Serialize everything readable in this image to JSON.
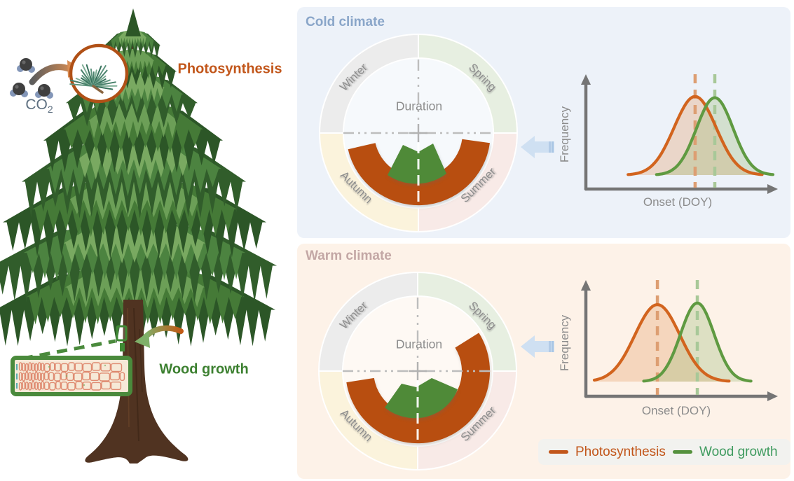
{
  "left": {
    "co2": {
      "base": "CO",
      "sub": "2"
    },
    "photosynthesis_label": "Photosynthesis",
    "wood_growth_label": "Wood growth",
    "icons": {
      "co2_molecules": "co2-ball-and-stick-molecules",
      "co2_arrow": "curved-right-arrow-gray-to-orange",
      "pine_shoot_circle": "circle-inset-pine-needles",
      "wood_growth_arrow": "curved-left-arrow-orange-to-green",
      "xylem_box": "wood-cell-cross-section",
      "tree": "pine-tree-illustration"
    }
  },
  "panels": [
    {
      "id": "cold",
      "title": "Cold climate",
      "duration_label": "Duration",
      "seasons": [
        "Winter",
        "Spring",
        "Summer",
        "Autumn"
      ],
      "photosynthesis_arc_deg": {
        "start": 98,
        "end": 257
      },
      "wood_arc_deg": {
        "start": 146,
        "end": 216
      },
      "wood_profile_points": [
        [
          -44,
          60
        ],
        [
          -22,
          17
        ],
        [
          0,
          27
        ],
        [
          21,
          15
        ],
        [
          40,
          58
        ]
      ],
      "plot": {
        "ylabel": "Frequency",
        "xlabel": "Onset (DOY)",
        "series": [
          {
            "name": "Photosynthesis",
            "mean_rel": 0.565,
            "sd_rel": 0.115,
            "height_rel": 0.66
          },
          {
            "name": "Wood growth",
            "mean_rel": 0.673,
            "sd_rel": 0.1,
            "height_rel": 0.65
          }
        ]
      }
    },
    {
      "id": "warm",
      "title": "Warm climate",
      "duration_label": "Duration",
      "seasons": [
        "Winter",
        "Spring",
        "Summer",
        "Autumn"
      ],
      "photosynthesis_arc_deg": {
        "start": 58,
        "end": 261
      },
      "wood_arc_deg": {
        "start": 114,
        "end": 224
      },
      "wood_profile_points": [
        [
          -47,
          52
        ],
        [
          -23,
          18
        ],
        [
          -2,
          23
        ],
        [
          20,
          10
        ],
        [
          57,
          26
        ]
      ],
      "plot": {
        "ylabel": "Frequency",
        "xlabel": "Onset (DOY)",
        "series": [
          {
            "name": "Photosynthesis",
            "mean_rel": 0.358,
            "sd_rel": 0.123,
            "height_rel": 0.647
          },
          {
            "name": "Wood growth",
            "mean_rel": 0.577,
            "sd_rel": 0.092,
            "height_rel": 0.66
          }
        ]
      }
    }
  ],
  "legend": {
    "items": [
      {
        "label": "Photosynthesis",
        "text_color": "#c2561a",
        "swatch_color": "#c2561a"
      },
      {
        "label": "Wood growth",
        "text_color": "#3f9b5f",
        "swatch_color": "#55913d"
      }
    ]
  },
  "colors": {
    "cold_panel_bg": "#edf2f9",
    "warm_panel_bg": "#fdf2e8",
    "cold_title": "#8aa6c9",
    "warm_title": "#c3a7a5",
    "photosynthesis_orange": "#c2561a",
    "arc_orange": "#b84e10",
    "curve_orange": "#d2641e",
    "dash_orange": "#dd9e72",
    "wood_green_text": "#3c8030",
    "arc_green": "#4f8a38",
    "curve_green": "#5f9a41",
    "dash_green": "#a8c898",
    "season_winter": "#ececec",
    "season_spring": "#e7efe1",
    "season_summer": "#f8eae7",
    "season_autumn": "#fbf3dc",
    "axis_gray": "#757575",
    "muted_text": "#8c8c8c",
    "crosshair_gray": "#bdbdbd",
    "blue_arrow": "#cfe0f2",
    "blue_arrow_tail": "#aac6e4",
    "legend_bg": "#f2f2ef",
    "co2_text": "#5d6f80"
  },
  "chart_data": [
    {
      "type": "area",
      "panel": "Cold climate",
      "title": "Onset distributions (conceptual, no numeric ticks)",
      "xlabel": "Onset (DOY)",
      "ylabel": "Frequency",
      "values_are_conceptual": true,
      "series": [
        {
          "name": "Photosynthesis",
          "shape": "normal",
          "mean_rel_x": 0.565,
          "sd_rel_x": 0.115,
          "peak_rel_y": 0.66
        },
        {
          "name": "Wood growth",
          "shape": "normal",
          "mean_rel_x": 0.673,
          "sd_rel_x": 0.1,
          "peak_rel_y": 0.65
        }
      ],
      "annotations": [
        "vertical dashed line at each distribution mean",
        "small onset offset between photosynthesis and wood growth"
      ]
    },
    {
      "type": "area",
      "panel": "Warm climate",
      "title": "Onset distributions (conceptual, no numeric ticks)",
      "xlabel": "Onset (DOY)",
      "ylabel": "Frequency",
      "values_are_conceptual": true,
      "series": [
        {
          "name": "Photosynthesis",
          "shape": "normal",
          "mean_rel_x": 0.358,
          "sd_rel_x": 0.123,
          "peak_rel_y": 0.647
        },
        {
          "name": "Wood growth",
          "shape": "normal",
          "mean_rel_x": 0.577,
          "sd_rel_x": 0.092,
          "peak_rel_y": 0.66
        }
      ],
      "annotations": [
        "vertical dashed line at each distribution mean",
        "larger onset offset between photosynthesis and wood growth"
      ]
    },
    {
      "type": "donut",
      "panel": "Cold climate",
      "center_label": "Duration",
      "categories": [
        "Winter",
        "Spring",
        "Summer",
        "Autumn"
      ],
      "arcs": [
        {
          "name": "Photosynthesis",
          "start_deg_from_north": 98,
          "end_deg_from_north": 257
        },
        {
          "name": "Wood growth",
          "start_deg_from_north": 146,
          "end_deg_from_north": 216
        }
      ]
    },
    {
      "type": "donut",
      "panel": "Warm climate",
      "center_label": "Duration",
      "categories": [
        "Winter",
        "Spring",
        "Summer",
        "Autumn"
      ],
      "arcs": [
        {
          "name": "Photosynthesis",
          "start_deg_from_north": 58,
          "end_deg_from_north": 261
        },
        {
          "name": "Wood growth",
          "start_deg_from_north": 114,
          "end_deg_from_north": 224
        }
      ]
    }
  ]
}
